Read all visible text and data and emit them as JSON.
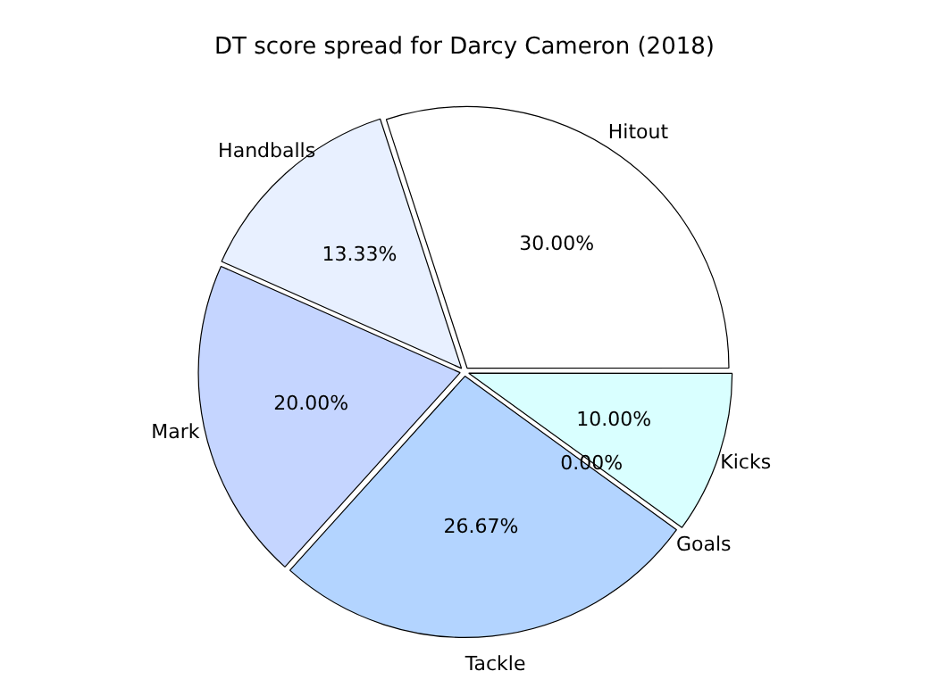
{
  "chart_data": {
    "type": "pie",
    "title": "DT score spread for Darcy Cameron (2018)",
    "categories": [
      "Kicks",
      "Goals",
      "Tackle",
      "Mark",
      "Handballs",
      "Hitout"
    ],
    "values": [
      10,
      0,
      26.67,
      20,
      13.33,
      30
    ],
    "value_labels": [
      "10.00%",
      "0.00%",
      "26.67%",
      "20.00%",
      "13.33%",
      "30.00%"
    ],
    "colors": [
      "#d9ffff",
      "#ffffff",
      "#b3d4ff",
      "#c5d5ff",
      "#e8f0ff",
      "#ffffff"
    ],
    "legend": false
  }
}
